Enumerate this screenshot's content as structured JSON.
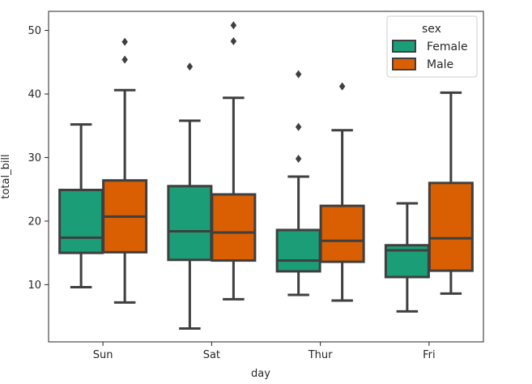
{
  "chart_data": {
    "type": "box",
    "xlabel": "day",
    "ylabel": "total_bill",
    "ylim": [
      1.0,
      53.0
    ],
    "yticks": [
      10,
      20,
      30,
      40,
      50
    ],
    "categories": [
      "Sun",
      "Sat",
      "Thur",
      "Fri"
    ],
    "legend": {
      "title": "sex",
      "placement": "top-right"
    },
    "series": [
      {
        "name": "Female",
        "color": "#1b9e77",
        "boxes": [
          {
            "category": "Sun",
            "whislo": 9.6,
            "q1": 15.0,
            "med": 17.4,
            "q3": 24.9,
            "whishi": 35.2,
            "fliers": []
          },
          {
            "category": "Sat",
            "whislo": 3.1,
            "q1": 13.9,
            "med": 18.4,
            "q3": 25.5,
            "whishi": 35.8,
            "fliers": [
              44.3
            ]
          },
          {
            "category": "Thur",
            "whislo": 8.4,
            "q1": 12.1,
            "med": 13.8,
            "q3": 18.6,
            "whishi": 27.0,
            "fliers": [
              29.8,
              34.8,
              43.1
            ]
          },
          {
            "category": "Fri",
            "whislo": 5.8,
            "q1": 11.2,
            "med": 15.4,
            "q3": 16.2,
            "whishi": 22.8,
            "fliers": []
          }
        ]
      },
      {
        "name": "Male",
        "color": "#d95f02",
        "boxes": [
          {
            "category": "Sun",
            "whislo": 7.2,
            "q1": 15.1,
            "med": 20.7,
            "q3": 26.4,
            "whishi": 40.6,
            "fliers": [
              45.4,
              48.2
            ]
          },
          {
            "category": "Sat",
            "whislo": 7.7,
            "q1": 13.8,
            "med": 18.2,
            "q3": 24.2,
            "whishi": 39.4,
            "fliers": [
              48.3,
              50.8
            ]
          },
          {
            "category": "Thur",
            "whislo": 7.5,
            "q1": 13.6,
            "med": 16.9,
            "q3": 22.4,
            "whishi": 34.3,
            "fliers": [
              41.2
            ]
          },
          {
            "category": "Fri",
            "whislo": 8.6,
            "q1": 12.2,
            "med": 17.3,
            "q3": 26.0,
            "whishi": 40.2,
            "fliers": []
          }
        ]
      }
    ]
  }
}
